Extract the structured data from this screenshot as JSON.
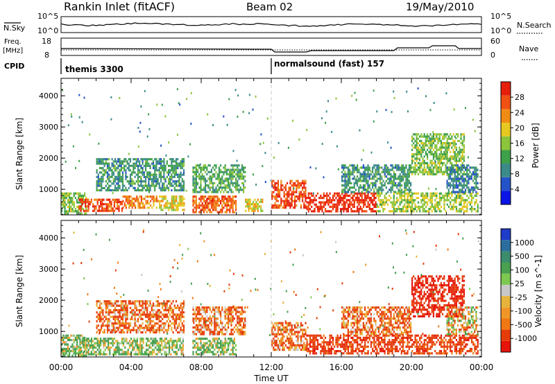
{
  "header": {
    "station": "Rankin Inlet (fitACF)",
    "beam": "Beam 02",
    "date": "19/May/2010"
  },
  "top_panels": {
    "nsky_label": "N.Sky",
    "nsky_ticks": [
      "10^5",
      "10^0"
    ],
    "nsearch_label": "N.Search",
    "nsearch_ticks": [
      "10^5",
      "10^0"
    ],
    "freq_label_line1": "Freq.",
    "freq_label_line2": "[MHz]",
    "freq_ticks": [
      "18",
      "8"
    ],
    "nave_label": "Nave",
    "nave_ticks": [
      "60",
      "0"
    ],
    "cpid_label": "CPID",
    "cpid_segments": [
      {
        "name": "themis 3300",
        "start_hour": 0
      },
      {
        "name": "normalsound (fast) 157",
        "start_hour": 12
      }
    ]
  },
  "colors": {
    "power_scale": [
      "#0a14e6",
      "#2452c8",
      "#3d8a8a",
      "#3fa04a",
      "#8cc43c",
      "#e6c820",
      "#f08c14",
      "#f05014",
      "#e61e0a"
    ],
    "velocity_scale": [
      "#1e3cc8",
      "#2a6e9e",
      "#3c8c6e",
      "#48a050",
      "#7cc850",
      "#c8c8c8",
      "#e6b43c",
      "#f09628",
      "#f07814",
      "#e63c0a",
      "#e6140a"
    ]
  },
  "chart_data": [
    {
      "type": "heatmap",
      "title": "Power",
      "xlabel": "Time UT",
      "ylabel": "Slant Range [km]",
      "x_range_hours": [
        0,
        24
      ],
      "x_tick_labels": [
        "00:00",
        "04:00",
        "08:00",
        "12:00",
        "16:00",
        "20:00",
        "00:00"
      ],
      "ylim": [
        180,
        4560
      ],
      "y_ticks": [
        1000,
        2000,
        3000,
        4000
      ],
      "colorbar_label": "Power [dB]",
      "colorbar_ticks": [
        4,
        8,
        12,
        16,
        20,
        24,
        28
      ],
      "colorbar_range": [
        0,
        30
      ],
      "regions": [
        {
          "t0": 0.0,
          "t1": 1.4,
          "r0": 200,
          "r1": 900,
          "value": 14
        },
        {
          "t0": 1.0,
          "t1": 3.5,
          "r0": 300,
          "r1": 700,
          "value": 26
        },
        {
          "t0": 3.5,
          "t1": 5.5,
          "r0": 400,
          "r1": 800,
          "value": 22
        },
        {
          "t0": 5.5,
          "t1": 7.0,
          "r0": 350,
          "r1": 800,
          "value": 18
        },
        {
          "t0": 2.0,
          "t1": 7.0,
          "r0": 1000,
          "r1": 2000,
          "value": 10
        },
        {
          "t0": 7.5,
          "t1": 10.0,
          "r0": 300,
          "r1": 800,
          "value": 24
        },
        {
          "t0": 7.5,
          "t1": 10.5,
          "r0": 900,
          "r1": 1800,
          "value": 12
        },
        {
          "t0": 10.5,
          "t1": 11.5,
          "r0": 300,
          "r1": 700,
          "value": 18
        },
        {
          "t0": 12.0,
          "t1": 14.0,
          "r0": 400,
          "r1": 1300,
          "value": 26
        },
        {
          "t0": 14.0,
          "t1": 18.0,
          "r0": 300,
          "r1": 900,
          "value": 28
        },
        {
          "t0": 16.0,
          "t1": 20.0,
          "r0": 900,
          "r1": 1800,
          "value": 10
        },
        {
          "t0": 18.0,
          "t1": 23.8,
          "r0": 300,
          "r1": 900,
          "value": 16
        },
        {
          "t0": 20.0,
          "t1": 23.0,
          "r0": 1500,
          "r1": 2800,
          "value": 14
        },
        {
          "t0": 22.0,
          "t1": 23.8,
          "r0": 900,
          "r1": 1800,
          "value": 8
        }
      ]
    },
    {
      "type": "heatmap",
      "title": "Velocity",
      "xlabel": "Time UT",
      "ylabel": "Slant Range [km]",
      "x_range_hours": [
        0,
        24
      ],
      "x_tick_labels": [
        "00:00",
        "04:00",
        "08:00",
        "12:00",
        "16:00",
        "20:00",
        "00:00"
      ],
      "ylim": [
        180,
        4560
      ],
      "y_ticks": [
        1000,
        2000,
        3000,
        4000
      ],
      "colorbar_label": "Velocity [m s^-1]",
      "colorbar_ticks": [
        "1000",
        "500",
        "100",
        "25",
        "-25",
        "-100",
        "-500",
        "-1000"
      ],
      "regions": [
        {
          "t0": 0.0,
          "t1": 1.4,
          "r0": 200,
          "r1": 900,
          "value": 100
        },
        {
          "t0": 1.0,
          "t1": 7.0,
          "r0": 300,
          "r1": 800,
          "value": 100
        },
        {
          "t0": 2.0,
          "t1": 7.0,
          "r0": 1000,
          "r1": 2000,
          "value": -100
        },
        {
          "t0": 7.5,
          "t1": 10.0,
          "r0": 300,
          "r1": 800,
          "value": 100
        },
        {
          "t0": 7.5,
          "t1": 10.5,
          "r0": 900,
          "r1": 1800,
          "value": -100
        },
        {
          "t0": 12.0,
          "t1": 14.0,
          "r0": 400,
          "r1": 1300,
          "value": -100
        },
        {
          "t0": 14.0,
          "t1": 18.0,
          "r0": 300,
          "r1": 900,
          "value": -200
        },
        {
          "t0": 16.0,
          "t1": 20.0,
          "r0": 900,
          "r1": 1800,
          "value": -100
        },
        {
          "t0": 18.0,
          "t1": 23.8,
          "r0": 300,
          "r1": 900,
          "value": -200
        },
        {
          "t0": 20.0,
          "t1": 23.0,
          "r0": 1500,
          "r1": 2800,
          "value": -300
        },
        {
          "t0": 22.0,
          "t1": 23.8,
          "r0": 900,
          "r1": 1800,
          "value": 0
        }
      ]
    }
  ]
}
